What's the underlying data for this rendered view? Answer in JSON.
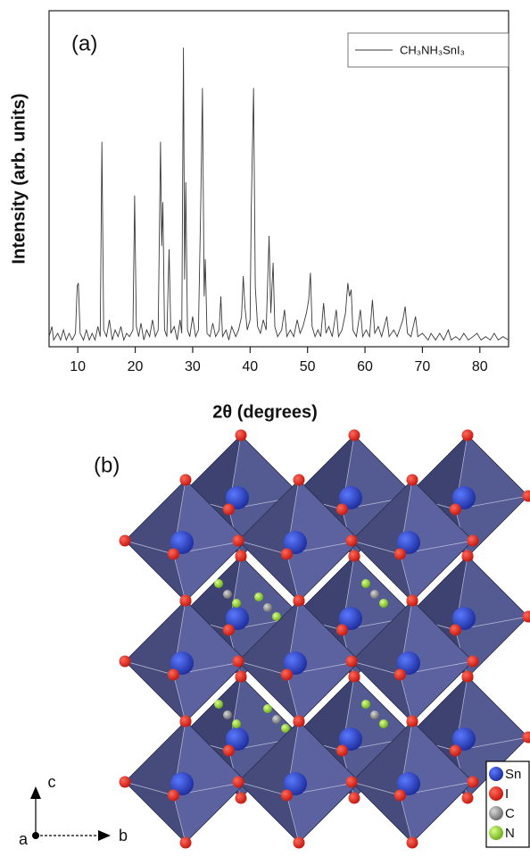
{
  "chart_data": {
    "type": "line",
    "panel_label": "(a)",
    "x_label": "2θ (degrees)",
    "y_label": "Intensity (arb. units)",
    "xlim": [
      5,
      85
    ],
    "ylim": [
      0,
      100
    ],
    "xticks": [
      10,
      20,
      30,
      40,
      50,
      60,
      70,
      80
    ],
    "legend": "upper right",
    "x": [
      5,
      5.5,
      5.8,
      6.5,
      7,
      7.5,
      8,
      8.5,
      9,
      9.6,
      9.9,
      10.1,
      10.4,
      11,
      11.5,
      12,
      12.5,
      13,
      13.5,
      13.9,
      14.2,
      14.5,
      15,
      15.5,
      16,
      16.5,
      17,
      17.5,
      18,
      18.5,
      19,
      19.6,
      19.9,
      20.2,
      20.6,
      21,
      21.5,
      22,
      22.5,
      23,
      23.5,
      24,
      24.4,
      24.6,
      24.8,
      25.1,
      25.5,
      25.9,
      26.2,
      26.8,
      27.3,
      27.8,
      28.1,
      28.4,
      28.6,
      28.8,
      29.1,
      29.5,
      30,
      30.5,
      31,
      31.4,
      31.7,
      32,
      32.2,
      32.5,
      33,
      33.5,
      34,
      34.6,
      34.9,
      35.2,
      35.8,
      36.3,
      36.8,
      37.5,
      38,
      38.5,
      38.8,
      39.1,
      39.5,
      40,
      40.2,
      40.6,
      40.9,
      41.3,
      41.8,
      42.3,
      42.8,
      43.3,
      43.6,
      44,
      44.3,
      44.8,
      45.5,
      46,
      46.4,
      47,
      47.6,
      48.2,
      48.7,
      49.2,
      49.8,
      50.2,
      50.5,
      50.8,
      51.3,
      51.8,
      52.3,
      52.8,
      53.2,
      53.7,
      54.3,
      55,
      55.4,
      56,
      56.6,
      57,
      57.3,
      57.6,
      57.9,
      58.5,
      59.2,
      59.6,
      60.2,
      60.8,
      61.3,
      61.7,
      62.3,
      62.9,
      63.8,
      64.2,
      65,
      65.6,
      66.2,
      66.6,
      67,
      67.4,
      68,
      68.8,
      69.2,
      70,
      71,
      71.5,
      72.3,
      73,
      73.7,
      74.5,
      75,
      75.8,
      76.5,
      77.2,
      78,
      78.8,
      79.5,
      80.2,
      81,
      81.8,
      82.5,
      83.2,
      84,
      85
    ],
    "series": [
      {
        "name": "CH₃NH₃SnI₃",
        "color": "#3a3a3a",
        "values": [
          3,
          6,
          2,
          4,
          2,
          5,
          2,
          4,
          2,
          4,
          18,
          19,
          4,
          2,
          5,
          2,
          4,
          2,
          6,
          3,
          61,
          5,
          3,
          8,
          2,
          5,
          3,
          6,
          2,
          4,
          3,
          5,
          45,
          6,
          3,
          7,
          2,
          5,
          3,
          8,
          3,
          5,
          61,
          30,
          43,
          5,
          3,
          29,
          4,
          6,
          2,
          8,
          4,
          89,
          20,
          49,
          5,
          3,
          9,
          3,
          5,
          41,
          77,
          15,
          26,
          4,
          3,
          7,
          3,
          5,
          15,
          3,
          5,
          2,
          6,
          3,
          5,
          9,
          21,
          12,
          5,
          8,
          41,
          77,
          18,
          6,
          4,
          8,
          5,
          33,
          10,
          25,
          6,
          3,
          5,
          11,
          3,
          5,
          3,
          8,
          4,
          6,
          10,
          14,
          22,
          6,
          3,
          5,
          3,
          13,
          4,
          6,
          3,
          11,
          3,
          5,
          10,
          19,
          15,
          17,
          5,
          3,
          11,
          3,
          5,
          3,
          14,
          4,
          6,
          3,
          9,
          3,
          5,
          3,
          6,
          8,
          12,
          4,
          3,
          9,
          3,
          4,
          2,
          4,
          2,
          4,
          2,
          5,
          2,
          3,
          2,
          4,
          2,
          3,
          4,
          2,
          3,
          2,
          4,
          2,
          3,
          2
        ]
      }
    ]
  },
  "panel_b": {
    "label": "(b)",
    "axes": [
      "c",
      "a",
      "b"
    ],
    "legend": [
      "Sn",
      "I",
      "C",
      "N"
    ]
  }
}
